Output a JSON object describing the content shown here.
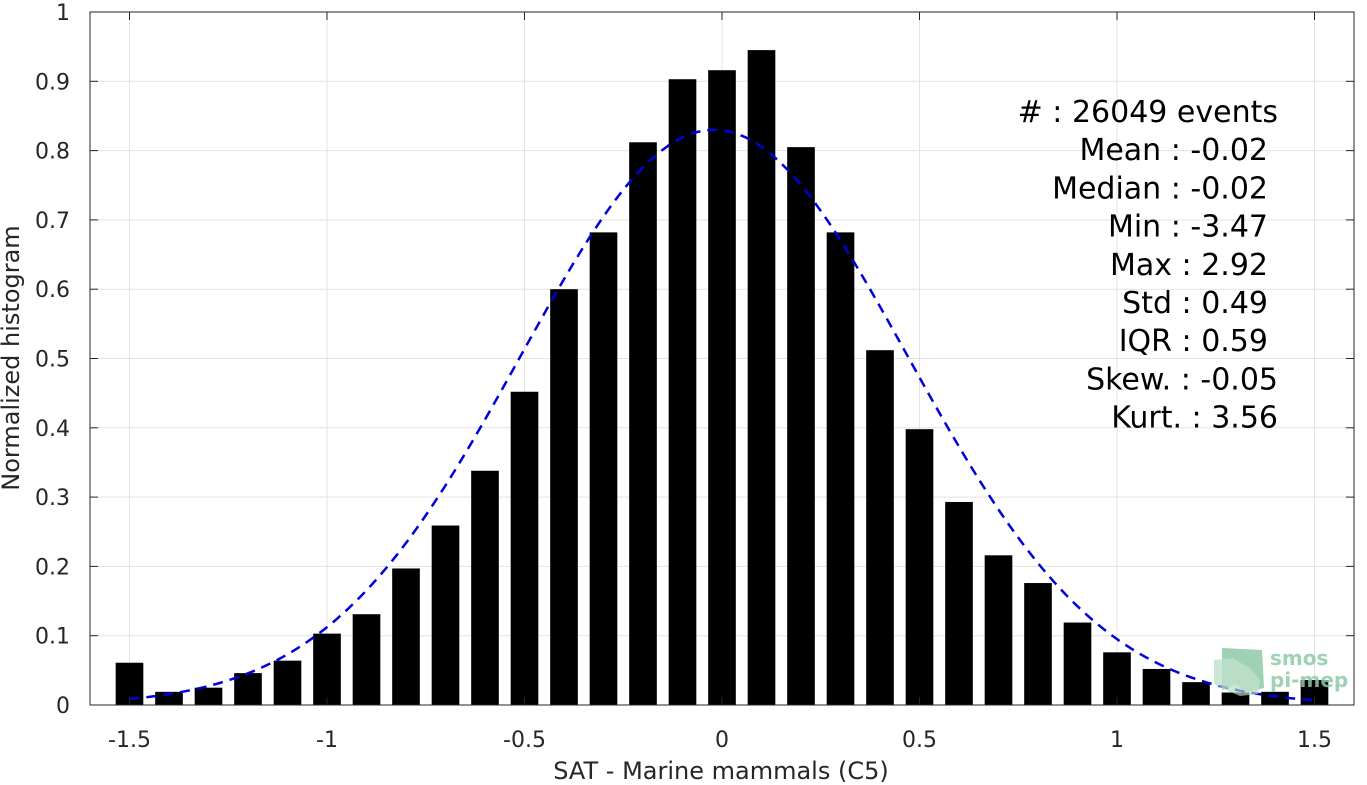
{
  "chart_data": {
    "type": "bar",
    "xlabel": "SAT - Marine mammals (C5)",
    "ylabel": "Normalized histogram",
    "xlim": [
      -1.6,
      1.6
    ],
    "ylim": [
      0,
      1
    ],
    "xticks": [
      -1.5,
      -1,
      -0.5,
      0,
      0.5,
      1,
      1.5
    ],
    "xtick_labels": [
      "-1.5",
      "-1",
      "-0.5",
      "0",
      "0.5",
      "1",
      "1.5"
    ],
    "yticks": [
      0,
      0.1,
      0.2,
      0.3,
      0.4,
      0.5,
      0.6,
      0.7,
      0.8,
      0.9,
      1
    ],
    "ytick_labels": [
      "0",
      "0.1",
      "0.2",
      "0.3",
      "0.4",
      "0.5",
      "0.6",
      "0.7",
      "0.8",
      "0.9",
      "1"
    ],
    "grid": true,
    "bar_color": "#000000",
    "fit_color": "#0000dd",
    "bin_centers": [
      -1.5,
      -1.4,
      -1.3,
      -1.2,
      -1.1,
      -1.0,
      -0.9,
      -0.8,
      -0.7,
      -0.6,
      -0.5,
      -0.4,
      -0.3,
      -0.2,
      -0.1,
      0.0,
      0.1,
      0.2,
      0.3,
      0.4,
      0.5,
      0.6,
      0.7,
      0.8,
      0.9,
      1.0,
      1.1,
      1.2,
      1.3,
      1.4,
      1.5
    ],
    "values": [
      0.061,
      0.019,
      0.025,
      0.046,
      0.064,
      0.103,
      0.131,
      0.197,
      0.259,
      0.338,
      0.452,
      0.6,
      0.682,
      0.812,
      0.903,
      0.916,
      0.945,
      0.805,
      0.682,
      0.512,
      0.398,
      0.293,
      0.216,
      0.176,
      0.119,
      0.076,
      0.052,
      0.033,
      0.018,
      0.019,
      0.036
    ],
    "fit": {
      "type": "gaussian",
      "style": "dashed",
      "mean": -0.02,
      "std": 0.49,
      "x_range": [
        -1.5,
        1.5
      ],
      "peak": 0.83
    },
    "stats_lines": [
      "#  : 26049 events",
      "Mean : -0.02",
      "Median : -0.02",
      "Min : -3.47",
      "Max : 2.92",
      "Std : 0.49",
      "IQR : 0.59",
      "Skew. : -0.05",
      "Kurt. : 3.56"
    ]
  },
  "logo": {
    "line1": "smos",
    "line2": "pi-mep",
    "color": "#8fc9a8"
  }
}
